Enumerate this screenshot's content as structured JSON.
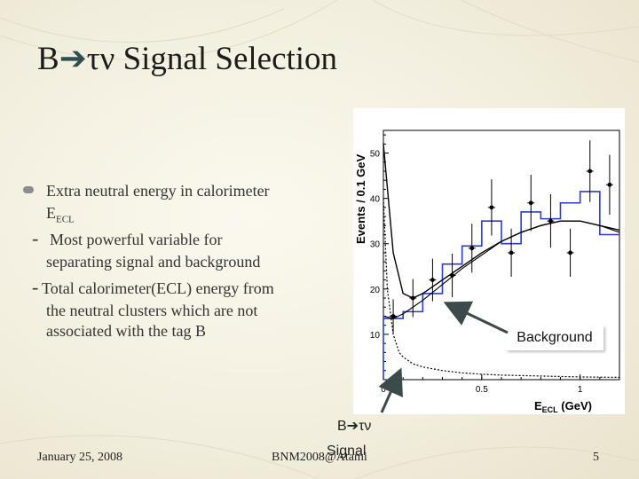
{
  "slide": {
    "title_prefix": "B",
    "title_particles": "τν",
    "title_rest": " Signal Selection",
    "bullet_main_line1": "Extra neutral energy in calorimeter",
    "bullet_main_line2": "E",
    "bullet_main_line2_sub": "ECL",
    "sub1_line1": "Most powerful variable for",
    "sub1_line2": "separating signal and background",
    "sub2_line1": "Total calorimeter(ECL) energy from",
    "sub2_line2": "the neutral clusters which are not",
    "sub2_line3": "associated with the tag B",
    "dash": "-",
    "background_label": "Background",
    "signal_label_top": "B",
    "signal_label_top_particles": "τν",
    "signal_label_bottom": "Signal"
  },
  "footer": {
    "date": "January 25, 2008",
    "conference": "BNM2008@Atami",
    "page": "5"
  },
  "colors": {
    "histogram": "#2b3bd6",
    "arrow": "#3b4b4b",
    "curve": "#000000"
  },
  "chart_data": {
    "type": "line",
    "xlabel": "E",
    "xlabel_sub": "ECL",
    "xlabel_unit": "(GeV)",
    "ylabel": "Events / 0.1 GeV",
    "xlim": [
      0,
      1.2
    ],
    "ylim": [
      0,
      55
    ],
    "x_ticks": [
      "0",
      "0.5",
      "1"
    ],
    "y_ticks": [
      "10",
      "20",
      "30",
      "40",
      "50"
    ],
    "data_points": {
      "x": [
        0.05,
        0.15,
        0.25,
        0.35,
        0.45,
        0.55,
        0.65,
        0.75,
        0.85,
        0.95,
        1.05,
        1.15
      ],
      "y": [
        14,
        18,
        22,
        23,
        29,
        38,
        28,
        39,
        35,
        28,
        46,
        43
      ],
      "err": [
        3.7,
        4.2,
        4.7,
        4.8,
        5.4,
        6.2,
        5.3,
        6.2,
        5.9,
        5.3,
        6.8,
        6.6
      ]
    },
    "histogram": {
      "edges": [
        0,
        0.1,
        0.2,
        0.3,
        0.4,
        0.5,
        0.6,
        0.7,
        0.8,
        0.9,
        1.0,
        1.1,
        1.2
      ],
      "values": [
        13.5,
        15,
        19,
        25.5,
        29.5,
        35,
        30,
        37,
        35.5,
        39,
        41.5,
        32
      ]
    },
    "series": [
      {
        "x": [
          0.0,
          0.05,
          0.1,
          0.15,
          0.2,
          0.3,
          0.4,
          0.5,
          0.6,
          0.7,
          0.8,
          0.9,
          1.0,
          1.1,
          1.2
        ],
        "y": [
          52,
          28,
          19,
          18,
          19,
          22,
          25,
          28,
          30.5,
          32.5,
          34,
          35,
          35,
          34,
          33
        ]
      },
      {
        "x": [
          0.0,
          0.05,
          0.1,
          0.15,
          0.2,
          0.3,
          0.4,
          0.5,
          0.6,
          0.7,
          0.8,
          0.9,
          1.0,
          1.1,
          1.2
        ],
        "y": [
          14,
          13.5,
          14.5,
          16,
          17.5,
          21,
          24.5,
          27.5,
          30.5,
          32.5,
          34,
          35,
          35,
          34,
          32.5
        ]
      },
      {
        "x": [
          0.0,
          0.02,
          0.05,
          0.08,
          0.1,
          0.15,
          0.2,
          0.3,
          0.4,
          0.5,
          0.6,
          0.8,
          1.0,
          1.2
        ],
        "y": [
          40,
          20,
          10,
          6,
          5,
          3.5,
          2.8,
          2,
          1.5,
          1.2,
          1,
          0.8,
          0.6,
          0.5
        ]
      }
    ]
  }
}
